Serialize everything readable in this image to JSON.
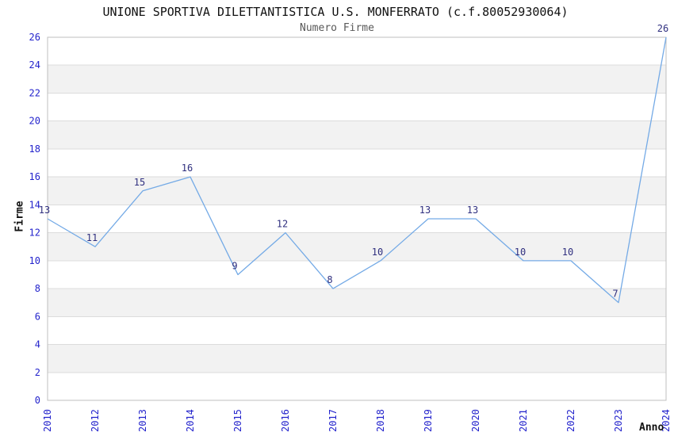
{
  "chart_data": {
    "type": "line",
    "title": "UNIONE SPORTIVA DILETTANTISTICA U.S. MONFERRATO (c.f.80052930064)",
    "subtitle": "Numero Firme",
    "xlabel": "Anno",
    "ylabel": "Firme",
    "categories": [
      "2010",
      "2012",
      "2013",
      "2014",
      "2015",
      "2016",
      "2017",
      "2018",
      "2019",
      "2020",
      "2021",
      "2022",
      "2023",
      "2024"
    ],
    "values": [
      13,
      11,
      15,
      16,
      9,
      12,
      8,
      10,
      13,
      13,
      10,
      10,
      7,
      26
    ],
    "ylim": [
      0,
      26
    ],
    "ytick_step": 2,
    "grid": "horizontal",
    "legend": "none",
    "show_point_labels": true,
    "band_fill_alternating": true,
    "colors": {
      "line": "#74aae6",
      "point_label": "#2f2f7f",
      "tick_label": "#2323cc",
      "band": "#f2f2f2",
      "grid_line": "#dcdcdc",
      "plot_border": "#bfbfbf",
      "title_text": "#111111",
      "subtitle_text": "#595959"
    }
  }
}
